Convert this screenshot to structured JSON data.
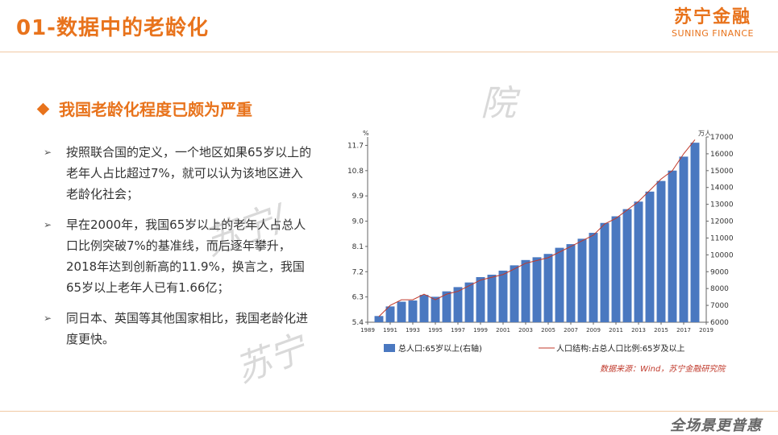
{
  "page": {
    "title": "01-数据中的老龄化",
    "logo_cn": "苏宁金融",
    "logo_en": "SUNING FINANCE",
    "subhead": "我国老龄化程度已颇为严重",
    "bullets": [
      "按照联合国的定义，一个地区如果65岁以上的老年人占比超过7%，就可以认为该地区进入老龄化社会；",
      "早在2000年，我国65岁以上的老年人占总人口比例突破7%的基准线，而后逐年攀升，2018年达到创新高的11.9%，换言之，我国65岁以上老年人已有1.66亿；",
      "同日本、英国等其他国家相比，我国老龄化进度更快。"
    ],
    "source": "数据来源：Wind，苏宁金融研究院",
    "slogan": "全场景更普惠",
    "watermarks": [
      "院",
      "苏宁/",
      "苏宁"
    ]
  },
  "chart_data": {
    "type": "bar",
    "left_unit": "%",
    "right_unit": "万人",
    "left_ticks": [
      "5.4",
      "6.3",
      "7.2",
      "8.1",
      "9.0",
      "9.9",
      "10.8",
      "11.7"
    ],
    "right_ticks": [
      "6000",
      "7000",
      "8000",
      "9000",
      "10000",
      "11000",
      "12000",
      "13000",
      "14000",
      "15000",
      "16000",
      "17000"
    ],
    "x_ticks": [
      "1989",
      "1991",
      "1993",
      "1995",
      "1997",
      "1999",
      "2001",
      "2003",
      "2005",
      "2007",
      "2009",
      "2011",
      "2013",
      "2015",
      "2017",
      "2019"
    ],
    "left_range": [
      5.4,
      12.0
    ],
    "right_range": [
      6000,
      17000
    ],
    "x_range": [
      1989,
      2019
    ],
    "years": [
      1990,
      1991,
      1992,
      1993,
      1994,
      1995,
      1996,
      1997,
      1998,
      1999,
      2000,
      2001,
      2002,
      2003,
      2004,
      2005,
      2006,
      2007,
      2008,
      2009,
      2010,
      2011,
      2012,
      2013,
      2014,
      2015,
      2016,
      2017,
      2018
    ],
    "series": [
      {
        "name": "总人口:65岁以上(右轴)",
        "axis": "right",
        "color": "#4a78c0",
        "values": [
          6368,
          6938,
          7218,
          7289,
          7622,
          7510,
          7833,
          8085,
          8359,
          8679,
          8821,
          9062,
          9377,
          9692,
          9857,
          10055,
          10419,
          10636,
          10956,
          11307,
          11894,
          12288,
          12714,
          13161,
          13755,
          14386,
          15003,
          15831,
          16658
        ]
      },
      {
        "name": "人口结构:占总人口比例:65岁及以上",
        "axis": "left",
        "color": "#c0392b",
        "values": [
          5.6,
          6.0,
          6.2,
          6.2,
          6.4,
          6.2,
          6.4,
          6.5,
          6.7,
          6.9,
          7.0,
          7.1,
          7.3,
          7.5,
          7.6,
          7.7,
          7.9,
          8.1,
          8.3,
          8.5,
          8.9,
          9.1,
          9.4,
          9.7,
          10.1,
          10.5,
          10.8,
          11.4,
          11.9
        ]
      }
    ]
  }
}
